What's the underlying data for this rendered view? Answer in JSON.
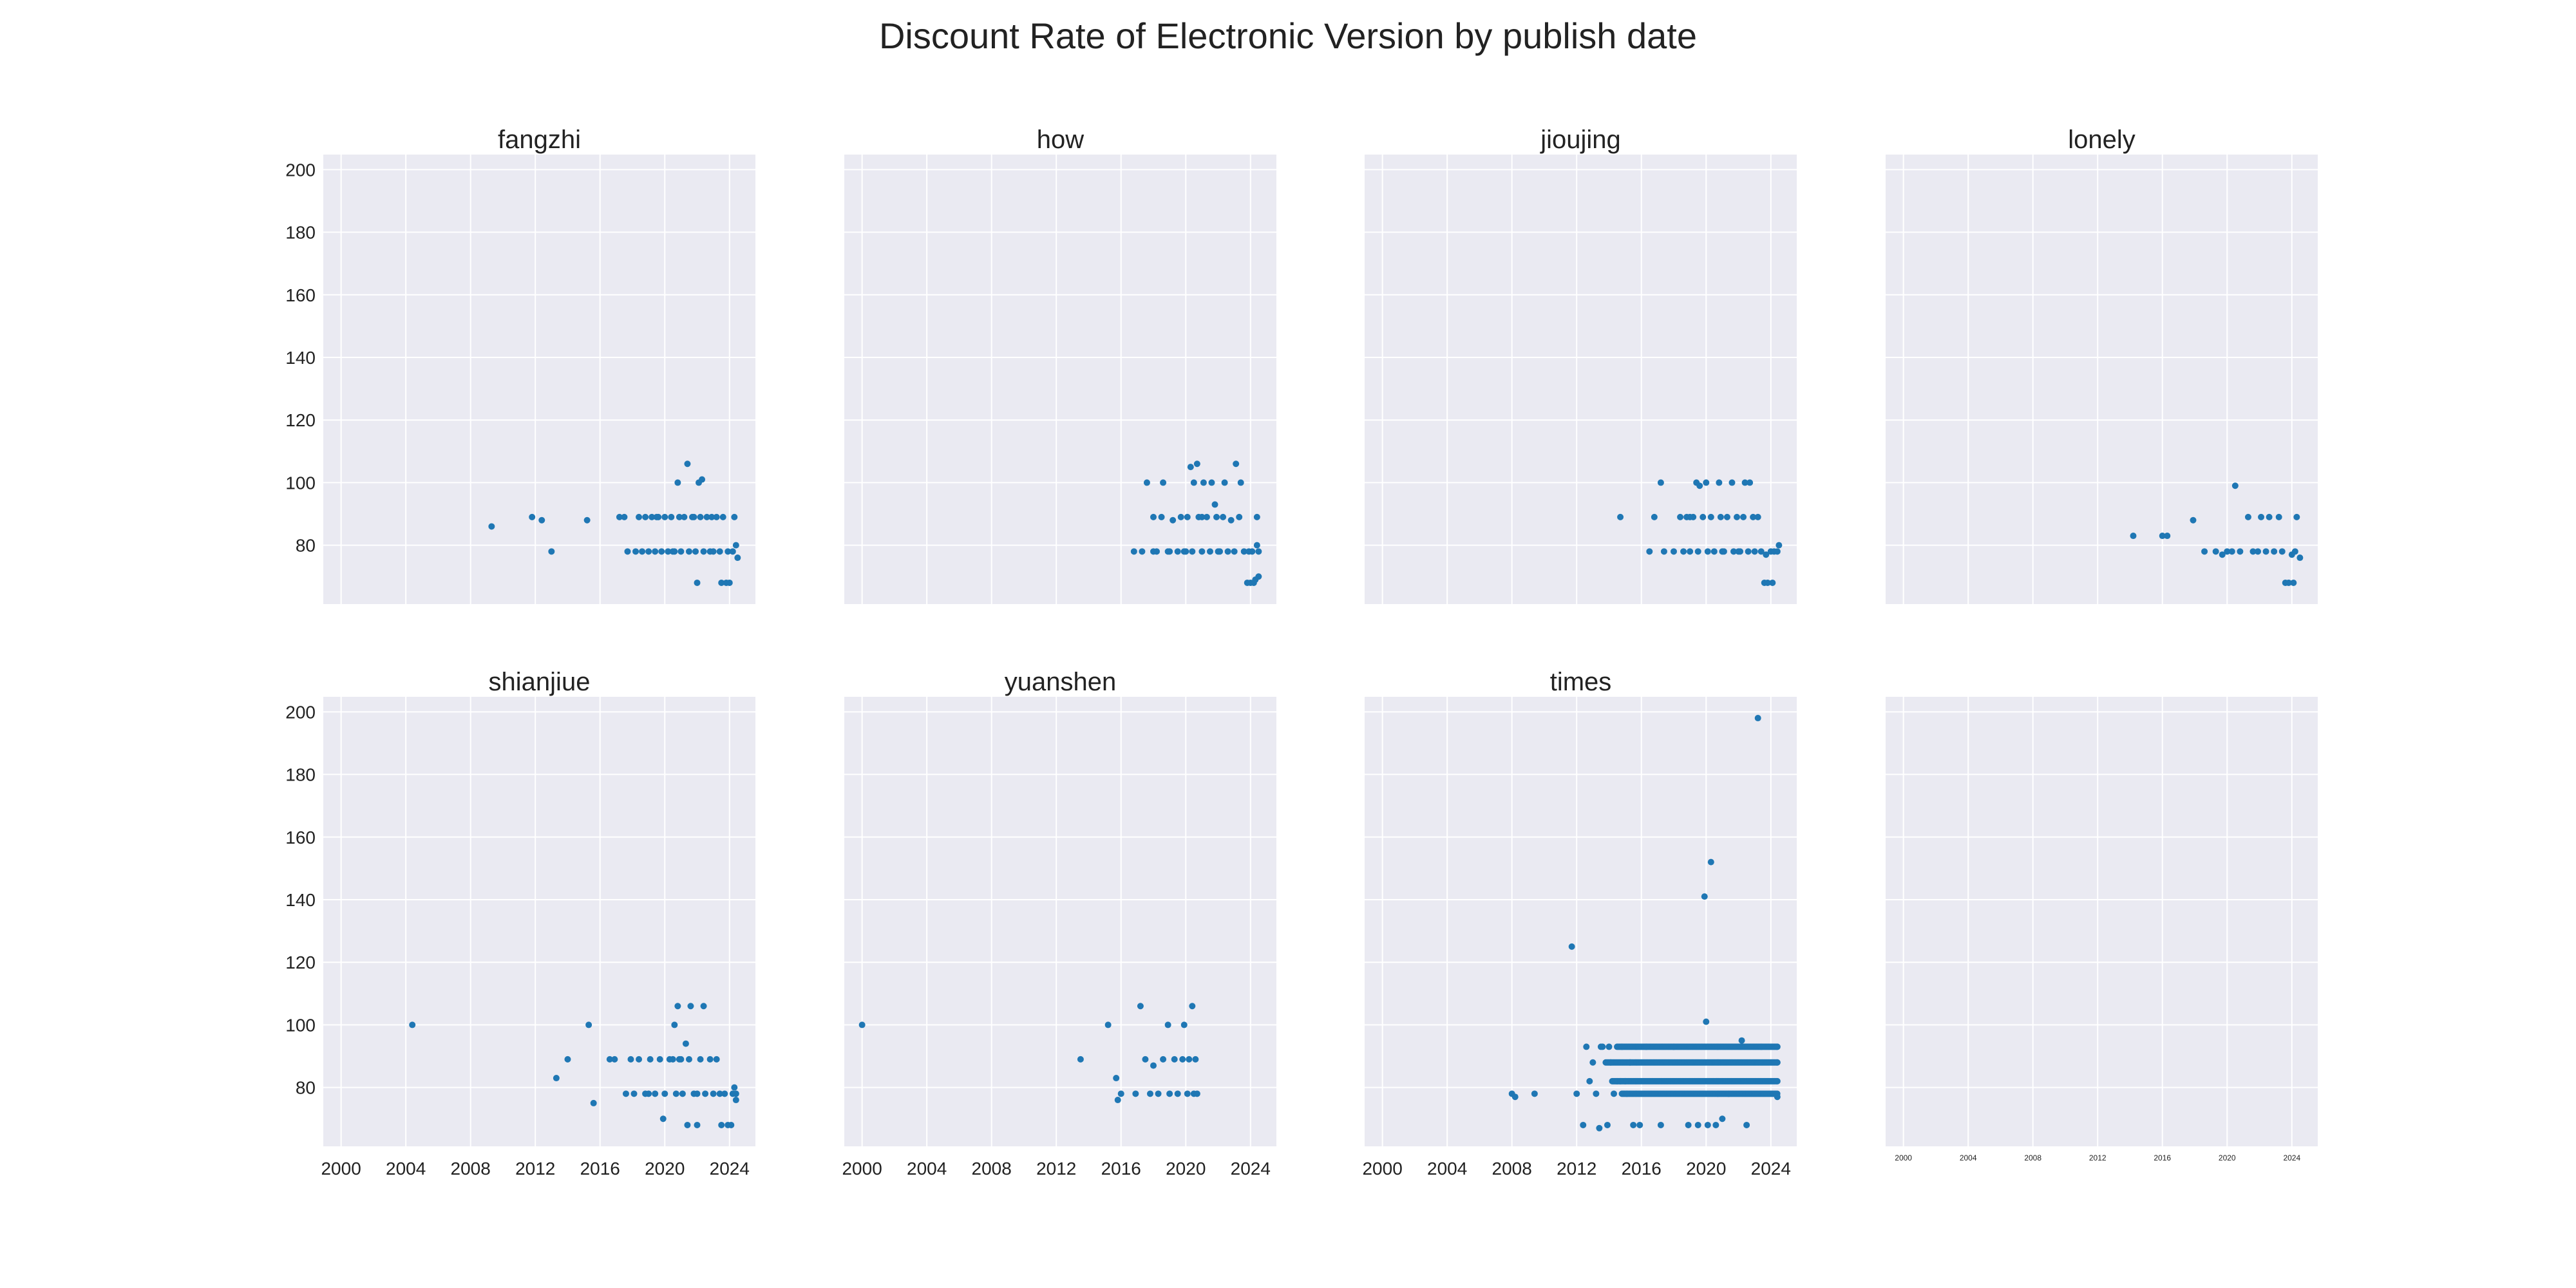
{
  "chart_data": {
    "type": "scatter",
    "title": "Discount Rate of Electronic Version by publish date",
    "point_color": "#1f77b4",
    "panel_bg": "#eaeaf2",
    "grid_color": "#ffffff",
    "x_ticks": [
      "2000",
      "2004",
      "2008",
      "2012",
      "2016",
      "2020",
      "2024"
    ],
    "x_tick_values": [
      2000,
      2004,
      2008,
      2012,
      2016,
      2020,
      2024
    ],
    "y_ticks": [
      "80",
      "100",
      "120",
      "140",
      "160",
      "180",
      "200"
    ],
    "y_tick_values": [
      80,
      100,
      120,
      140,
      160,
      180,
      200
    ],
    "xlim": [
      1998.9,
      2025.6
    ],
    "ylim": [
      61.2,
      204.8
    ],
    "grid": true,
    "panels": [
      {
        "title": "fangzhi",
        "points": [
          [
            2009.3,
            86
          ],
          [
            2011.8,
            89
          ],
          [
            2012.4,
            88
          ],
          [
            2013.0,
            78
          ],
          [
            2015.2,
            88
          ],
          [
            2017.2,
            89
          ],
          [
            2017.5,
            89
          ],
          [
            2017.7,
            78
          ],
          [
            2018.2,
            78
          ],
          [
            2018.4,
            89
          ],
          [
            2018.6,
            78
          ],
          [
            2018.8,
            89
          ],
          [
            2019.0,
            78
          ],
          [
            2019.2,
            89
          ],
          [
            2019.4,
            78
          ],
          [
            2019.6,
            89
          ],
          [
            2019.8,
            78
          ],
          [
            2020.0,
            89
          ],
          [
            2020.2,
            78
          ],
          [
            2020.4,
            89
          ],
          [
            2020.6,
            78
          ],
          [
            2020.8,
            100
          ],
          [
            2020.9,
            89
          ],
          [
            2021.0,
            78
          ],
          [
            2021.2,
            89
          ],
          [
            2021.4,
            106
          ],
          [
            2021.5,
            78
          ],
          [
            2021.7,
            89
          ],
          [
            2021.9,
            78
          ],
          [
            2022.1,
            100
          ],
          [
            2022.2,
            89
          ],
          [
            2022.3,
            101
          ],
          [
            2022.4,
            78
          ],
          [
            2022.6,
            89
          ],
          [
            2022.8,
            78
          ],
          [
            2022.9,
            89
          ],
          [
            2023.0,
            78
          ],
          [
            2023.2,
            89
          ],
          [
            2023.4,
            78
          ],
          [
            2023.5,
            68
          ],
          [
            2023.6,
            89
          ],
          [
            2023.8,
            68
          ],
          [
            2023.9,
            78
          ],
          [
            2024.0,
            68
          ],
          [
            2024.2,
            78
          ],
          [
            2024.3,
            89
          ],
          [
            2024.4,
            80
          ],
          [
            2024.5,
            76
          ],
          [
            2022.0,
            68
          ],
          [
            2019.5,
            89
          ],
          [
            2020.5,
            78
          ],
          [
            2021.8,
            89
          ]
        ]
      },
      {
        "title": "how",
        "points": [
          [
            2016.8,
            78
          ],
          [
            2017.3,
            78
          ],
          [
            2017.6,
            100
          ],
          [
            2018.0,
            89
          ],
          [
            2018.2,
            78
          ],
          [
            2018.5,
            89
          ],
          [
            2018.6,
            100
          ],
          [
            2018.9,
            78
          ],
          [
            2019.2,
            88
          ],
          [
            2019.5,
            78
          ],
          [
            2019.7,
            89
          ],
          [
            2019.9,
            78
          ],
          [
            2020.1,
            89
          ],
          [
            2020.3,
            105
          ],
          [
            2020.4,
            78
          ],
          [
            2020.5,
            100
          ],
          [
            2020.7,
            106
          ],
          [
            2020.8,
            89
          ],
          [
            2021.0,
            78
          ],
          [
            2021.1,
            100
          ],
          [
            2021.3,
            89
          ],
          [
            2021.5,
            78
          ],
          [
            2021.6,
            100
          ],
          [
            2021.8,
            93
          ],
          [
            2021.9,
            89
          ],
          [
            2022.1,
            78
          ],
          [
            2022.3,
            89
          ],
          [
            2022.4,
            100
          ],
          [
            2022.6,
            78
          ],
          [
            2022.8,
            88
          ],
          [
            2023.0,
            78
          ],
          [
            2023.1,
            106
          ],
          [
            2023.3,
            89
          ],
          [
            2023.4,
            100
          ],
          [
            2023.6,
            78
          ],
          [
            2023.8,
            68
          ],
          [
            2023.9,
            78
          ],
          [
            2024.0,
            68
          ],
          [
            2024.1,
            78
          ],
          [
            2024.2,
            68
          ],
          [
            2024.3,
            69
          ],
          [
            2024.4,
            80
          ],
          [
            2024.4,
            89
          ],
          [
            2024.5,
            70
          ],
          [
            2024.5,
            78
          ],
          [
            2018.0,
            78
          ],
          [
            2019.0,
            78
          ],
          [
            2020.0,
            78
          ],
          [
            2021.0,
            89
          ],
          [
            2022.0,
            78
          ]
        ]
      },
      {
        "title": "jioujing",
        "points": [
          [
            2014.7,
            89
          ],
          [
            2016.5,
            78
          ],
          [
            2016.8,
            89
          ],
          [
            2017.2,
            100
          ],
          [
            2017.4,
            78
          ],
          [
            2018.0,
            78
          ],
          [
            2018.4,
            89
          ],
          [
            2018.6,
            78
          ],
          [
            2018.8,
            89
          ],
          [
            2019.0,
            78
          ],
          [
            2019.2,
            89
          ],
          [
            2019.4,
            100
          ],
          [
            2019.5,
            78
          ],
          [
            2019.6,
            99
          ],
          [
            2019.8,
            89
          ],
          [
            2020.0,
            100
          ],
          [
            2020.1,
            78
          ],
          [
            2020.3,
            89
          ],
          [
            2020.5,
            78
          ],
          [
            2020.8,
            100
          ],
          [
            2020.9,
            89
          ],
          [
            2021.1,
            78
          ],
          [
            2021.3,
            89
          ],
          [
            2021.6,
            100
          ],
          [
            2021.7,
            78
          ],
          [
            2021.9,
            89
          ],
          [
            2022.1,
            78
          ],
          [
            2022.3,
            89
          ],
          [
            2022.4,
            100
          ],
          [
            2022.6,
            78
          ],
          [
            2022.7,
            100
          ],
          [
            2022.9,
            89
          ],
          [
            2023.0,
            78
          ],
          [
            2023.2,
            89
          ],
          [
            2023.4,
            78
          ],
          [
            2023.6,
            68
          ],
          [
            2023.7,
            77
          ],
          [
            2023.8,
            68
          ],
          [
            2024.0,
            78
          ],
          [
            2024.1,
            68
          ],
          [
            2024.2,
            78
          ],
          [
            2024.4,
            78
          ],
          [
            2024.5,
            80
          ],
          [
            2019.0,
            89
          ],
          [
            2021.0,
            78
          ],
          [
            2022.0,
            78
          ]
        ]
      },
      {
        "title": "lonely",
        "points": [
          [
            2014.2,
            83
          ],
          [
            2016.0,
            83
          ],
          [
            2016.3,
            83
          ],
          [
            2017.9,
            88
          ],
          [
            2018.6,
            78
          ],
          [
            2019.3,
            78
          ],
          [
            2019.7,
            77
          ],
          [
            2020.0,
            78
          ],
          [
            2020.3,
            78
          ],
          [
            2020.5,
            99
          ],
          [
            2020.8,
            78
          ],
          [
            2021.3,
            89
          ],
          [
            2021.6,
            78
          ],
          [
            2021.9,
            78
          ],
          [
            2022.1,
            89
          ],
          [
            2022.4,
            78
          ],
          [
            2022.6,
            89
          ],
          [
            2022.9,
            78
          ],
          [
            2023.2,
            89
          ],
          [
            2023.4,
            78
          ],
          [
            2023.6,
            68
          ],
          [
            2023.8,
            68
          ],
          [
            2024.0,
            77
          ],
          [
            2024.1,
            68
          ],
          [
            2024.3,
            89
          ],
          [
            2024.5,
            76
          ],
          [
            2024.2,
            78
          ]
        ]
      },
      {
        "title": "shianjiue",
        "points": [
          [
            2004.4,
            100
          ],
          [
            2013.3,
            83
          ],
          [
            2014.0,
            89
          ],
          [
            2015.3,
            100
          ],
          [
            2015.6,
            75
          ],
          [
            2016.6,
            89
          ],
          [
            2016.9,
            89
          ],
          [
            2017.6,
            78
          ],
          [
            2017.9,
            89
          ],
          [
            2018.1,
            78
          ],
          [
            2018.4,
            89
          ],
          [
            2018.8,
            78
          ],
          [
            2019.1,
            89
          ],
          [
            2019.4,
            78
          ],
          [
            2019.7,
            89
          ],
          [
            2019.9,
            70
          ],
          [
            2020.0,
            78
          ],
          [
            2020.3,
            89
          ],
          [
            2020.6,
            100
          ],
          [
            2020.7,
            78
          ],
          [
            2020.8,
            106
          ],
          [
            2020.9,
            89
          ],
          [
            2021.1,
            78
          ],
          [
            2021.3,
            94
          ],
          [
            2021.4,
            68
          ],
          [
            2021.5,
            89
          ],
          [
            2021.6,
            106
          ],
          [
            2021.8,
            78
          ],
          [
            2022.0,
            68
          ],
          [
            2022.2,
            89
          ],
          [
            2022.4,
            106
          ],
          [
            2022.5,
            78
          ],
          [
            2022.8,
            89
          ],
          [
            2023.0,
            78
          ],
          [
            2023.2,
            89
          ],
          [
            2023.4,
            78
          ],
          [
            2023.5,
            68
          ],
          [
            2023.7,
            78
          ],
          [
            2023.9,
            68
          ],
          [
            2024.1,
            68
          ],
          [
            2024.2,
            78
          ],
          [
            2024.3,
            80
          ],
          [
            2024.4,
            76
          ],
          [
            2024.4,
            78
          ],
          [
            2019.0,
            78
          ],
          [
            2020.5,
            89
          ],
          [
            2021.0,
            89
          ],
          [
            2022.0,
            78
          ]
        ]
      },
      {
        "title": "yuanshen",
        "points": [
          [
            2000.0,
            100
          ],
          [
            2013.5,
            89
          ],
          [
            2015.2,
            100
          ],
          [
            2015.7,
            83
          ],
          [
            2015.8,
            76
          ],
          [
            2016.0,
            78
          ],
          [
            2016.9,
            78
          ],
          [
            2017.2,
            106
          ],
          [
            2017.5,
            89
          ],
          [
            2017.8,
            78
          ],
          [
            2018.0,
            87
          ],
          [
            2018.3,
            78
          ],
          [
            2018.6,
            89
          ],
          [
            2018.9,
            100
          ],
          [
            2019.0,
            78
          ],
          [
            2019.3,
            89
          ],
          [
            2019.5,
            78
          ],
          [
            2019.8,
            89
          ],
          [
            2019.9,
            100
          ],
          [
            2020.1,
            78
          ],
          [
            2020.2,
            89
          ],
          [
            2020.4,
            106
          ],
          [
            2020.5,
            78
          ],
          [
            2020.6,
            89
          ],
          [
            2020.7,
            78
          ]
        ]
      },
      {
        "title": "times",
        "points": [
          [
            2008.0,
            78
          ],
          [
            2008.2,
            77
          ],
          [
            2009.4,
            78
          ],
          [
            2011.7,
            125
          ],
          [
            2012.0,
            78
          ],
          [
            2012.4,
            68
          ],
          [
            2012.6,
            93
          ],
          [
            2012.8,
            82
          ],
          [
            2013.0,
            88
          ],
          [
            2013.2,
            78
          ],
          [
            2013.4,
            67
          ],
          [
            2013.6,
            93
          ],
          [
            2013.9,
            68
          ],
          [
            2014.0,
            93
          ],
          [
            2014.3,
            78
          ],
          [
            2014.5,
            82
          ],
          [
            2014.8,
            93
          ],
          [
            2015.0,
            82
          ],
          [
            2015.3,
            88
          ],
          [
            2015.5,
            68
          ],
          [
            2015.9,
            68
          ],
          [
            2016.3,
            93
          ],
          [
            2017.2,
            68
          ],
          [
            2018.0,
            93
          ],
          [
            2018.9,
            68
          ],
          [
            2019.5,
            68
          ],
          [
            2019.9,
            141
          ],
          [
            2020.0,
            101
          ],
          [
            2020.1,
            68
          ],
          [
            2020.3,
            152
          ],
          [
            2020.6,
            68
          ],
          [
            2021.0,
            70
          ],
          [
            2022.2,
            95
          ],
          [
            2022.5,
            68
          ],
          [
            2023.2,
            198
          ],
          [
            2023.4,
            93
          ],
          [
            2024.4,
            77
          ],
          [
            2024.4,
            88
          ],
          [
            2024.4,
            93
          ],
          [
            2024.4,
            82
          ],
          [
            2013.5,
            93
          ],
          [
            2014.1,
            88
          ],
          [
            2014.7,
            82
          ],
          [
            2015.1,
            78
          ],
          [
            2021.4,
            78
          ]
        ],
        "bands": [
          {
            "y": 93,
            "x_start": 2014.5,
            "x_end": 2024.4
          },
          {
            "y": 88,
            "x_start": 2013.8,
            "x_end": 2024.4
          },
          {
            "y": 82,
            "x_start": 2014.2,
            "x_end": 2024.4
          },
          {
            "y": 78,
            "x_start": 2014.8,
            "x_end": 2024.4
          }
        ]
      },
      {
        "title": "",
        "points": []
      }
    ]
  }
}
